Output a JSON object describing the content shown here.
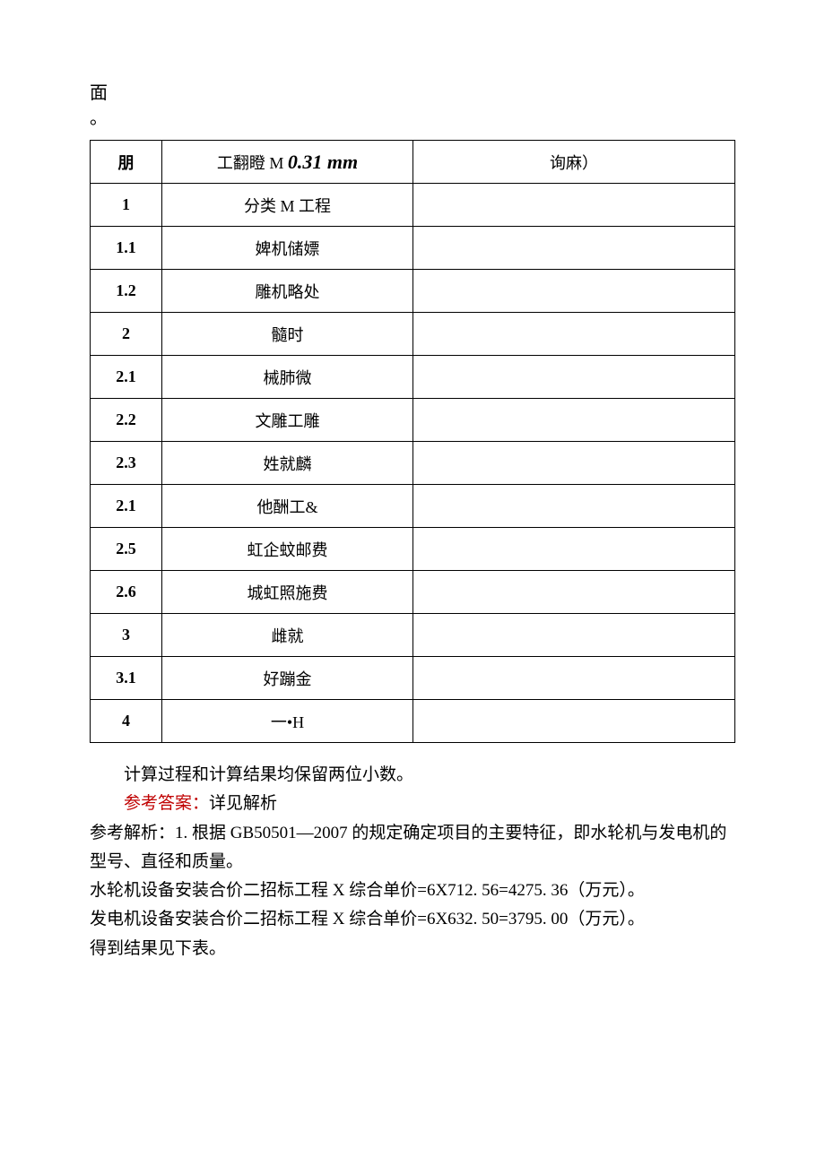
{
  "topText": {
    "line1": "面",
    "line2": "。"
  },
  "table": {
    "headerRow": {
      "col1": "朋",
      "col2_pre": "工翻瞪 M",
      "col2_mm": "0.31 mm",
      "col3": "询麻）"
    },
    "rows": [
      {
        "num": "1",
        "desc": "分类 M 工程"
      },
      {
        "num": "1.1",
        "desc": "婢机储嫖"
      },
      {
        "num": "1.2",
        "desc": "雕机略处"
      },
      {
        "num": "2",
        "desc": "髓时"
      },
      {
        "num": "2.1",
        "desc": "械肺微"
      },
      {
        "num": "2.2",
        "desc": "文雕工雕"
      },
      {
        "num": "2.3",
        "desc": "姓就麟"
      },
      {
        "num": "2.1",
        "desc": "他酬工&"
      },
      {
        "num": "2.5",
        "desc": "虹企蚊邮费"
      },
      {
        "num": "2.6",
        "desc": "城虹照施费"
      },
      {
        "num": "3",
        "desc": "雌就"
      },
      {
        "num": "3.1",
        "desc": "好蹦金"
      },
      {
        "num": "4",
        "desc": "一•H"
      }
    ]
  },
  "belowText": {
    "line1": "计算过程和计算结果均保留两位小数。",
    "answer_prefix": "参考答案：",
    "answer_text": "详见解析",
    "line3": "参考解析：1. 根据 GB50501—2007 的规定确定项目的主要特征，即水轮机与发电机的型号、直径和质量。",
    "line4": "水轮机设备安装合价二招标工程 X 综合单价=6X712. 56=4275. 36（万元）。",
    "line5": "发电机设备安装合价二招标工程 X 综合单价=6X632. 50=3795. 00（万元）。",
    "line6": "得到结果见下表。"
  }
}
